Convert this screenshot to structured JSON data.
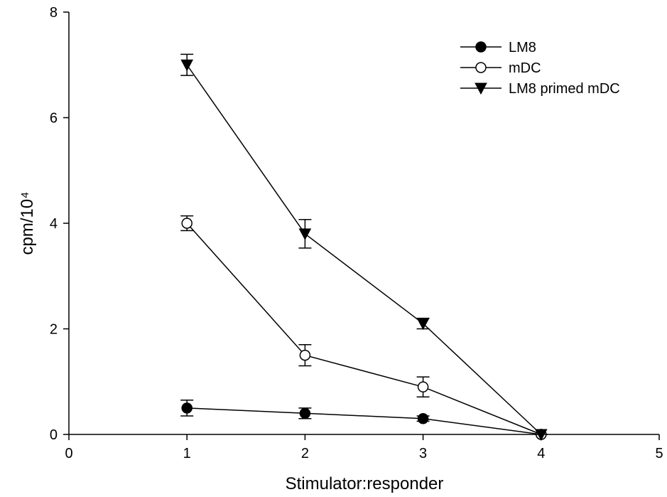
{
  "chart_data": {
    "type": "line",
    "x_label": "Stimulator:responder",
    "y_label": "cpm/10⁴",
    "x": [
      1,
      2,
      3,
      4
    ],
    "xlim": [
      0,
      5
    ],
    "xticks": [
      0,
      1,
      2,
      3,
      4,
      5
    ],
    "ylim": [
      0,
      8
    ],
    "yticks": [
      0,
      2,
      4,
      6,
      8
    ],
    "legend": "upper right",
    "series": [
      {
        "name": "LM8",
        "color": "#000000",
        "marker": "filled-circle",
        "values": [
          0.5,
          0.4,
          0.3,
          0
        ],
        "errors": [
          0.15,
          0.1,
          0.05,
          0
        ]
      },
      {
        "name": "mDC",
        "color": "#000000",
        "marker": "open-circle",
        "values": [
          4.0,
          1.5,
          0.9,
          0
        ],
        "errors": [
          0.14,
          0.2,
          0.19,
          0
        ]
      },
      {
        "name": "LM8 primed mDC",
        "color": "#000000",
        "marker": "filled-triangle-down",
        "values": [
          7.0,
          3.8,
          2.1,
          0
        ],
        "errors": [
          0.2,
          0.27,
          0.1,
          0
        ]
      }
    ]
  }
}
